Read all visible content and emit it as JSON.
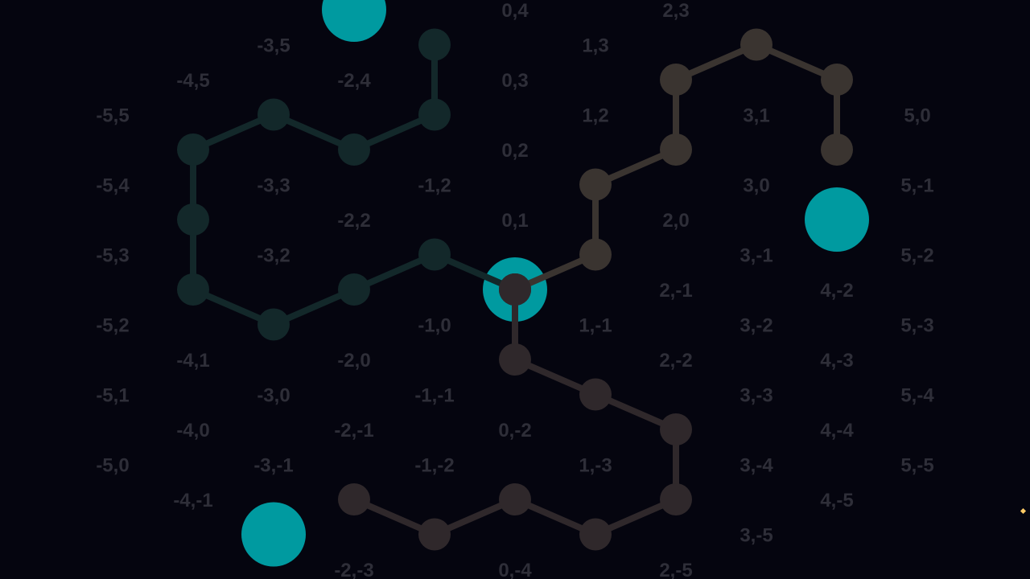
{
  "colors": {
    "background": "#05050f",
    "label": "#2e2e38",
    "target": "#009aa0",
    "path_green": "#13282a",
    "path_brown": "#3a3430",
    "path_dark": "#2f282b",
    "cursor": "#ffcc66"
  },
  "board": {
    "labels": [
      {
        "text": "0,4",
        "q": 0,
        "r": 4
      },
      {
        "text": "2,3",
        "q": 2,
        "r": 3
      },
      {
        "text": "-3,5",
        "q": -3,
        "r": 5
      },
      {
        "text": "1,3",
        "q": 1,
        "r": 3
      },
      {
        "text": "-4,5",
        "q": -4,
        "r": 5
      },
      {
        "text": "-2,4",
        "q": -2,
        "r": 4
      },
      {
        "text": "0,3",
        "q": 0,
        "r": 3
      },
      {
        "text": "-5,5",
        "q": -5,
        "r": 5
      },
      {
        "text": "1,2",
        "q": 1,
        "r": 2
      },
      {
        "text": "3,1",
        "q": 3,
        "r": 1
      },
      {
        "text": "5,0",
        "q": 5,
        "r": 0
      },
      {
        "text": "0,2",
        "q": 0,
        "r": 2
      },
      {
        "text": "-5,4",
        "q": -5,
        "r": 4
      },
      {
        "text": "-3,3",
        "q": -3,
        "r": 3
      },
      {
        "text": "-1,2",
        "q": -1,
        "r": 2
      },
      {
        "text": "3,0",
        "q": 3,
        "r": 0
      },
      {
        "text": "5,-1",
        "q": 5,
        "r": -1
      },
      {
        "text": "-2,2",
        "q": -2,
        "r": 2
      },
      {
        "text": "0,1",
        "q": 0,
        "r": 1
      },
      {
        "text": "2,0",
        "q": 2,
        "r": 0
      },
      {
        "text": "-5,3",
        "q": -5,
        "r": 3
      },
      {
        "text": "-3,2",
        "q": -3,
        "r": 2
      },
      {
        "text": "3,-1",
        "q": 3,
        "r": -1
      },
      {
        "text": "5,-2",
        "q": 5,
        "r": -2
      },
      {
        "text": "2,-1",
        "q": 2,
        "r": -1
      },
      {
        "text": "4,-2",
        "q": 4,
        "r": -2
      },
      {
        "text": "-5,2",
        "q": -5,
        "r": 2
      },
      {
        "text": "-1,0",
        "q": -1,
        "r": 0
      },
      {
        "text": "1,-1",
        "q": 1,
        "r": -1
      },
      {
        "text": "3,-2",
        "q": 3,
        "r": -2
      },
      {
        "text": "5,-3",
        "q": 5,
        "r": -3
      },
      {
        "text": "-4,1",
        "q": -4,
        "r": 1
      },
      {
        "text": "-2,0",
        "q": -2,
        "r": 0
      },
      {
        "text": "2,-2",
        "q": 2,
        "r": -2
      },
      {
        "text": "4,-3",
        "q": 4,
        "r": -3
      },
      {
        "text": "-5,1",
        "q": -5,
        "r": 1
      },
      {
        "text": "-3,0",
        "q": -3,
        "r": 0
      },
      {
        "text": "-1,-1",
        "q": -1,
        "r": -1
      },
      {
        "text": "3,-3",
        "q": 3,
        "r": -3
      },
      {
        "text": "5,-4",
        "q": 5,
        "r": -4
      },
      {
        "text": "-4,0",
        "q": -4,
        "r": 0
      },
      {
        "text": "-2,-1",
        "q": -2,
        "r": -1
      },
      {
        "text": "0,-2",
        "q": 0,
        "r": -2
      },
      {
        "text": "4,-4",
        "q": 4,
        "r": -4
      },
      {
        "text": "-5,0",
        "q": -5,
        "r": 0
      },
      {
        "text": "-3,-1",
        "q": -3,
        "r": -1
      },
      {
        "text": "-1,-2",
        "q": -1,
        "r": -2
      },
      {
        "text": "1,-3",
        "q": 1,
        "r": -3
      },
      {
        "text": "3,-4",
        "q": 3,
        "r": -4
      },
      {
        "text": "5,-5",
        "q": 5,
        "r": -5
      },
      {
        "text": "-4,-1",
        "q": -4,
        "r": -1
      },
      {
        "text": "4,-5",
        "q": 4,
        "r": -5
      },
      {
        "text": "3,-5",
        "q": 3,
        "r": -5
      },
      {
        "text": "-2,-3",
        "q": -2,
        "r": -3
      },
      {
        "text": "0,-4",
        "q": 0,
        "r": -4
      },
      {
        "text": "2,-5",
        "q": 2,
        "r": -5
      }
    ],
    "targets": [
      {
        "q": -2,
        "r": 5
      },
      {
        "q": 4,
        "r": -1
      },
      {
        "q": 0,
        "r": 0
      },
      {
        "q": -3,
        "r": -2
      }
    ],
    "paths": [
      {
        "color_key": "path_green",
        "nodes": [
          [
            -1,
            4
          ],
          [
            -1,
            3
          ],
          [
            -2,
            3
          ],
          [
            -3,
            4
          ],
          [
            -4,
            4
          ],
          [
            -4,
            3
          ],
          [
            -4,
            2
          ],
          [
            -3,
            1
          ],
          [
            -2,
            1
          ],
          [
            -1,
            1
          ],
          [
            0,
            0
          ]
        ]
      },
      {
        "color_key": "path_brown",
        "nodes": [
          [
            0,
            0
          ],
          [
            1,
            0
          ],
          [
            1,
            1
          ],
          [
            2,
            1
          ],
          [
            2,
            2
          ],
          [
            3,
            2
          ],
          [
            4,
            1
          ],
          [
            4,
            0
          ]
        ]
      },
      {
        "color_key": "path_dark",
        "nodes": [
          [
            0,
            0
          ],
          [
            0,
            -1
          ],
          [
            1,
            -2
          ],
          [
            2,
            -3
          ],
          [
            2,
            -4
          ],
          [
            1,
            -4
          ],
          [
            0,
            -3
          ],
          [
            -1,
            -3
          ],
          [
            -2,
            -2
          ]
        ]
      }
    ]
  }
}
